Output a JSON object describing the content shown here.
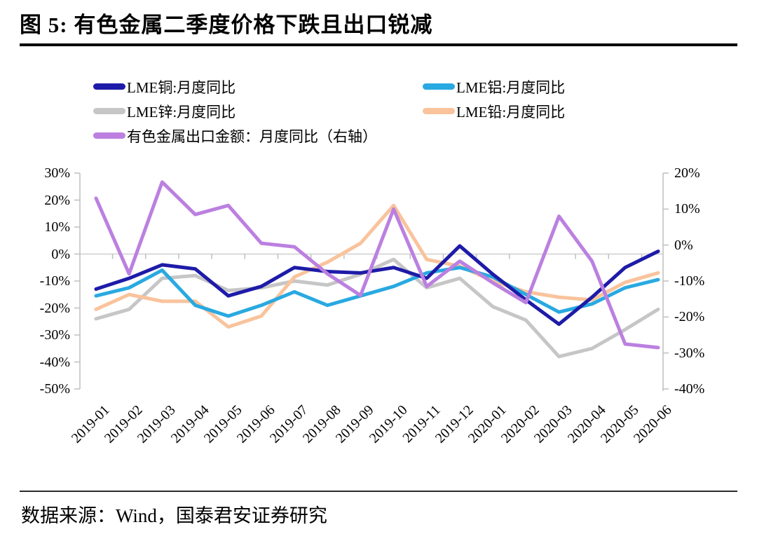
{
  "title": "图 5:  有色金属二季度价格下跌且出口锐减",
  "source": "数据来源：Wind，国泰君安证券研究",
  "colors": {
    "axis_line": "#bfbfbf",
    "grid_zero_line": "#d9d9d9",
    "title_rule": "#000000",
    "footer_rule": "#2b2b2b",
    "text": "#000000"
  },
  "chart_data": {
    "type": "line",
    "title": "图 5:  有色金属二季度价格下跌且出口锐减",
    "legend_position": "top",
    "grid": "zero-line-only",
    "categories": [
      "2019-01",
      "2019-02",
      "2019-03",
      "2019-04",
      "2019-05",
      "2019-06",
      "2019-07",
      "2019-08",
      "2019-09",
      "2019-10",
      "2019-11",
      "2019-12",
      "2020-01",
      "2020-02",
      "2020-03",
      "2020-04",
      "2020-05",
      "2020-06"
    ],
    "series": [
      {
        "name": "LME铜:月度同比",
        "slug": "lme-copper",
        "color": "#1e1ba8",
        "axis": "left",
        "values": [
          -13,
          -9,
          -4,
          -5.5,
          -15.5,
          -12,
          -5,
          -6.5,
          -7,
          -5,
          -9,
          3,
          -7.5,
          -17,
          -26,
          -16,
          -5,
          1
        ]
      },
      {
        "name": "LME铝:月度同比",
        "slug": "lme-aluminum",
        "color": "#29a9e1",
        "axis": "left",
        "values": [
          -15.5,
          -12.5,
          -6,
          -19,
          -23,
          -19,
          -14,
          -19,
          -15.5,
          -12,
          -7,
          -5,
          -8.5,
          -15,
          -21.5,
          -18.5,
          -12.5,
          -9.5
        ]
      },
      {
        "name": "LME锌:月度同比",
        "slug": "lme-zinc",
        "color": "#c6c6c6",
        "axis": "left",
        "values": [
          -24,
          -20.5,
          -9,
          -8,
          -13.5,
          -12.5,
          -10,
          -11.5,
          -7.5,
          -2,
          -12.5,
          -9,
          -19.5,
          -24.5,
          -38,
          -35,
          -28,
          -20.5
        ]
      },
      {
        "name": "LME铅:月度同比",
        "slug": "lme-lead",
        "color": "#f9c39c",
        "axis": "left",
        "values": [
          -20.5,
          -15,
          -17.5,
          -17.5,
          -27,
          -23,
          -8.5,
          -3,
          4,
          18,
          -2,
          -4.5,
          -10,
          -14,
          -16,
          -17,
          -10.5,
          -7
        ]
      },
      {
        "name": "有色金属出口金额：月度同比（右轴）",
        "slug": "nonferrous-export",
        "color": "#bb80e0",
        "axis": "right",
        "values": [
          13,
          -8,
          17.5,
          8.5,
          11,
          0.5,
          -0.5,
          -8,
          -14,
          10,
          -11.5,
          -4.5,
          -10.5,
          -16,
          8,
          -4.5,
          -27.5,
          -28.5
        ]
      }
    ],
    "left_axis": {
      "min": -50,
      "max": 30,
      "tick_values": [
        30,
        20,
        10,
        0,
        -10,
        -20,
        -30,
        -40,
        -50
      ],
      "ticks": [
        "30%",
        "20%",
        "10%",
        "0%",
        "-10%",
        "-20%",
        "-30%",
        "-40%",
        "-50%"
      ]
    },
    "right_axis": {
      "min": -40,
      "max": 20,
      "tick_values": [
        20,
        10,
        0,
        -10,
        -20,
        -30,
        -40
      ],
      "ticks": [
        "20%",
        "10%",
        "0%",
        "-10%",
        "-20%",
        "-30%",
        "-40%"
      ]
    }
  }
}
